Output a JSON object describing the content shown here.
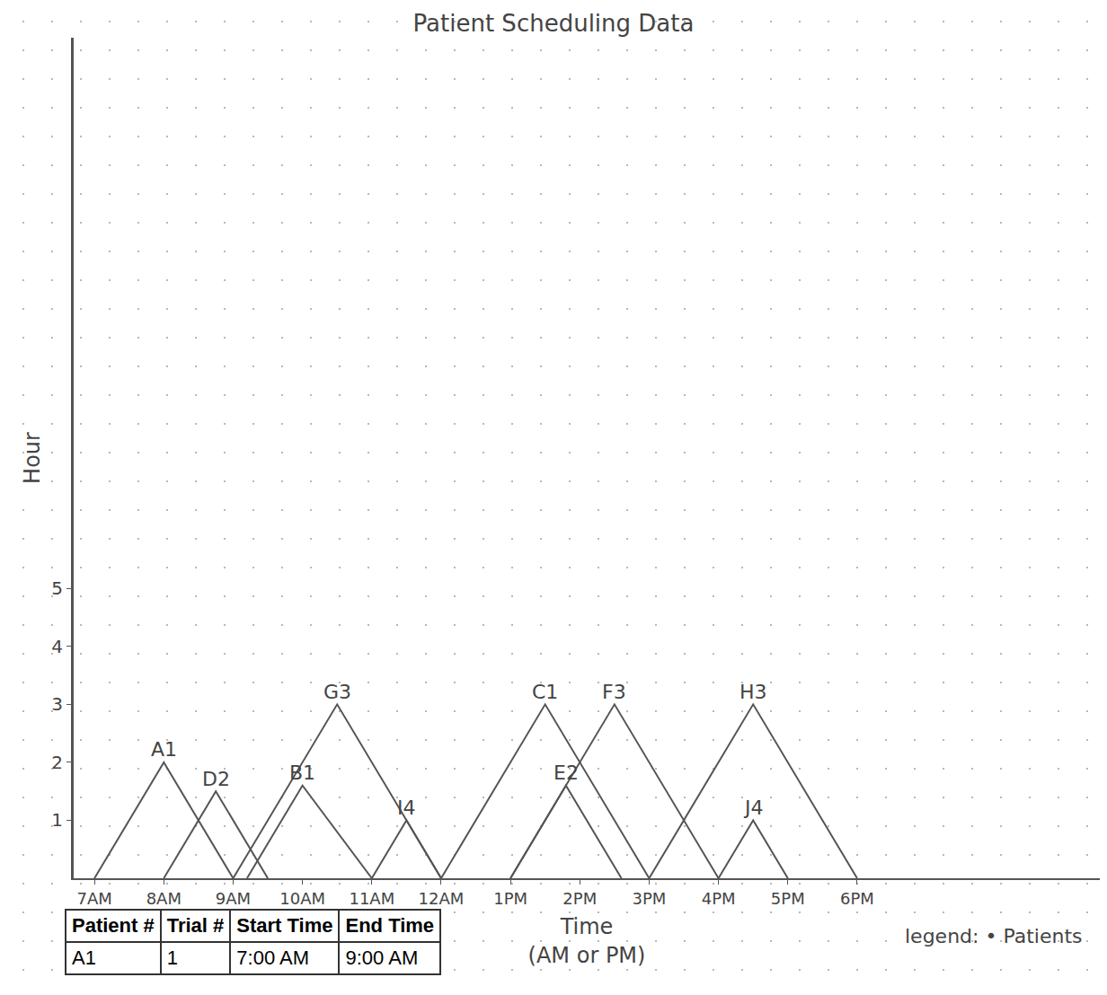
{
  "chart_data": {
    "type": "line",
    "title": "Patient Scheduling Data",
    "x_label": [
      "Time",
      "(AM or PM)"
    ],
    "y_label": "Hour",
    "xlim": [
      6.7,
      21.5
    ],
    "xticks": [
      {
        "value": 7,
        "label": "7AM"
      },
      {
        "value": 8,
        "label": "8AM"
      },
      {
        "value": 9,
        "label": "9AM"
      },
      {
        "value": 10,
        "label": "10AM"
      },
      {
        "value": 11,
        "label": "11AM"
      },
      {
        "value": 12,
        "label": "12AM"
      },
      {
        "value": 13,
        "label": "1PM"
      },
      {
        "value": 14,
        "label": "2PM"
      },
      {
        "value": 15,
        "label": "3PM"
      },
      {
        "value": 16,
        "label": "4PM"
      },
      {
        "value": 17,
        "label": "5PM"
      },
      {
        "value": 18,
        "label": "6PM"
      }
    ],
    "ylim": [
      0,
      14.5
    ],
    "yticks": [
      1,
      2,
      3,
      4,
      5
    ],
    "grid": false,
    "color": "#555555",
    "annotations": [
      "legend: • Patients"
    ],
    "series": [
      {
        "name": "A1",
        "x": [
          7,
          8,
          9
        ],
        "values": [
          0,
          2,
          0
        ]
      },
      {
        "name": "D2",
        "x": [
          8,
          8.75,
          9.5
        ],
        "values": [
          0,
          1.5,
          0
        ]
      },
      {
        "name": "B1",
        "x": [
          9.2,
          10,
          11
        ],
        "values": [
          0,
          1.6,
          0
        ]
      },
      {
        "name": "G3",
        "x": [
          9,
          10.5,
          12
        ],
        "values": [
          0,
          3,
          0
        ]
      },
      {
        "name": "I4",
        "x": [
          11,
          11.5,
          12
        ],
        "values": [
          0,
          1,
          0
        ]
      },
      {
        "name": "C1",
        "x": [
          12,
          13.5,
          15
        ],
        "values": [
          0,
          3,
          0
        ]
      },
      {
        "name": "E2",
        "x": [
          13,
          13.8,
          14.6
        ],
        "values": [
          0,
          1.6,
          0
        ]
      },
      {
        "name": "F3",
        "x": [
          13,
          14.5,
          16
        ],
        "values": [
          0,
          3,
          0
        ]
      },
      {
        "name": "H3",
        "x": [
          15,
          16.5,
          18
        ],
        "values": [
          0,
          3,
          0
        ]
      },
      {
        "name": "J4",
        "x": [
          16,
          16.5,
          17
        ],
        "values": [
          0,
          1,
          0
        ]
      }
    ]
  },
  "table": {
    "columns": [
      "Patient #",
      "Trial #",
      "Start Time",
      "End Time"
    ],
    "rows": [
      [
        "A1",
        "1",
        "7:00 AM",
        "9:00 AM"
      ]
    ]
  }
}
